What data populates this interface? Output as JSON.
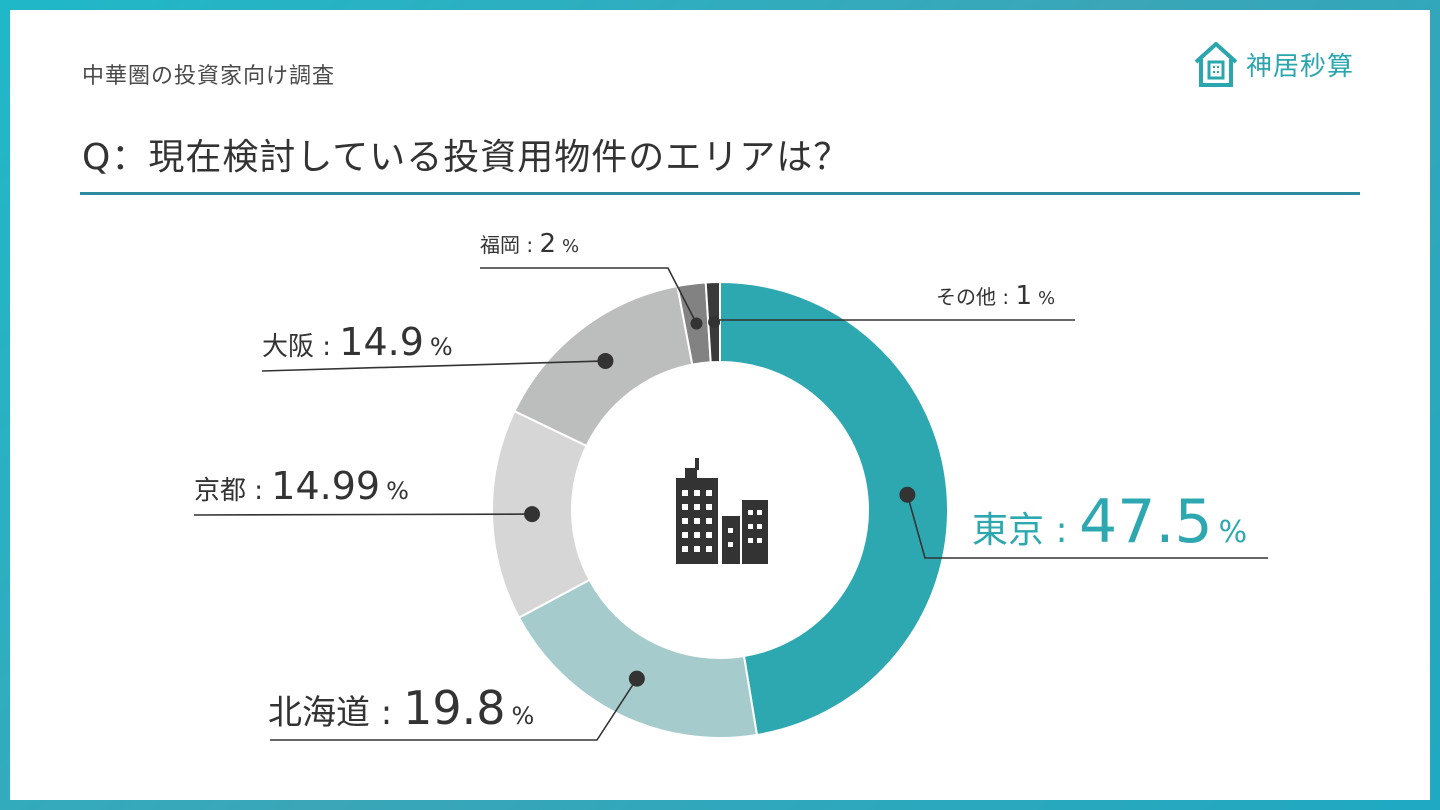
{
  "header": {
    "subtitle": "中華圏の投資家向け調査",
    "title": "Q：現在検討している投資用物件のエリアは？",
    "logo_text": "神居秒算"
  },
  "colors": {
    "accent": "#2ea8b0",
    "rule": "#2e8aa0"
  },
  "chart_data": {
    "type": "pie",
    "donut": true,
    "center_icon": "building-icon",
    "slices": [
      {
        "label": "東京",
        "value": 47.5,
        "value_text": "47.5",
        "unit": "%",
        "color": "#2ea8b0"
      },
      {
        "label": "北海道",
        "value": 19.8,
        "value_text": "19.8",
        "unit": "%",
        "color": "#a6cbcc"
      },
      {
        "label": "京都",
        "value": 14.99,
        "value_text": "14.99",
        "unit": "%",
        "color": "#d6d6d6"
      },
      {
        "label": "大阪",
        "value": 14.9,
        "value_text": "14.9",
        "unit": "%",
        "color": "#bcbdbd"
      },
      {
        "label": "福岡",
        "value": 2,
        "value_text": "2",
        "unit": "%",
        "color": "#828282"
      },
      {
        "label": "その他",
        "value": 1,
        "value_text": "1",
        "unit": "%",
        "color": "#3a3a3a"
      }
    ]
  }
}
